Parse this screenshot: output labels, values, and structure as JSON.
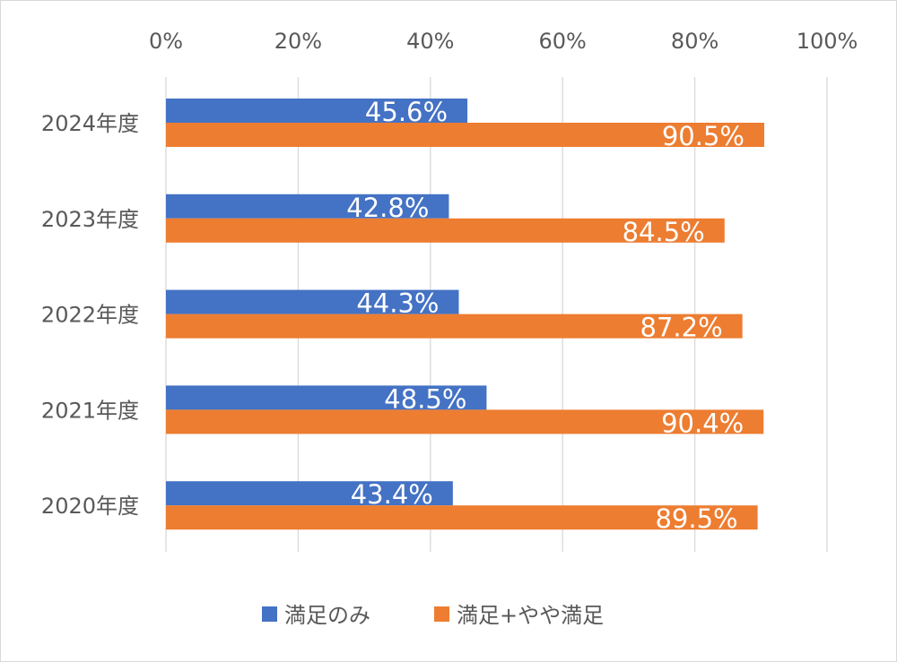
{
  "chart_data": {
    "type": "bar",
    "orientation": "horizontal",
    "categories": [
      "2024年度",
      "2023年度",
      "2022年度",
      "2021年度",
      "2020年度"
    ],
    "series": [
      {
        "name": "満足のみ",
        "color": "#4472c4",
        "values": [
          45.6,
          42.8,
          44.3,
          48.5,
          43.4
        ],
        "labels": [
          "45.6%",
          "42.8%",
          "44.3%",
          "48.5%",
          "43.4%"
        ]
      },
      {
        "name": "満足+やや満足",
        "color": "#ed7d31",
        "values": [
          90.5,
          84.5,
          87.2,
          90.4,
          89.5
        ],
        "labels": [
          "90.5%",
          "84.5%",
          "87.2%",
          "90.4%",
          "89.5%"
        ]
      }
    ],
    "xlim": [
      0,
      100
    ],
    "x_ticks": [
      "0%",
      "20%",
      "40%",
      "60%",
      "80%",
      "100%"
    ],
    "x_axis_position": "top",
    "grid": true,
    "legend": "bottom",
    "title": "",
    "xlabel": "",
    "ylabel": ""
  }
}
